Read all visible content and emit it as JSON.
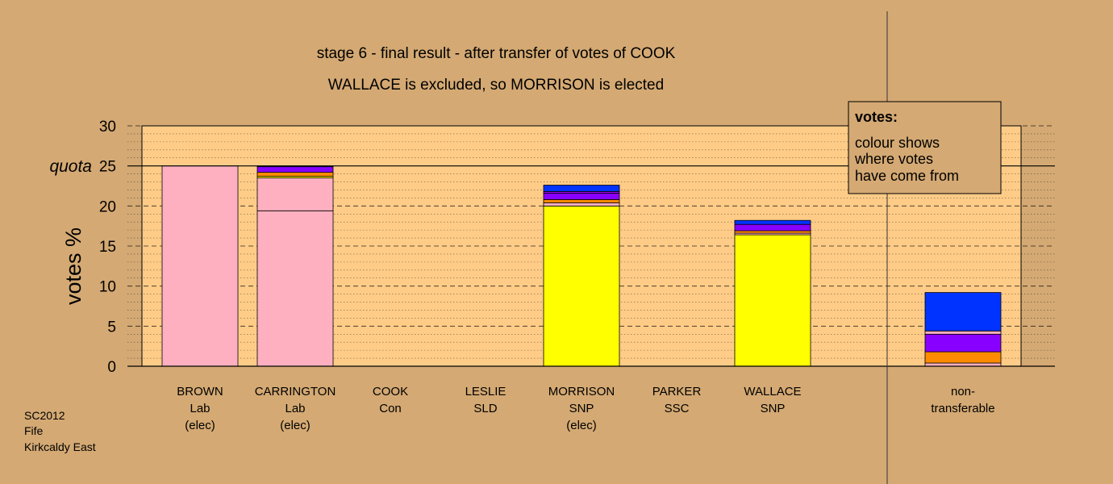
{
  "chart_data": {
    "type": "bar",
    "stacked": true,
    "title": "stage 6 - final result - after transfer of votes of COOK",
    "subtitle": "WALLACE is excluded, so MORRISON is elected",
    "ylabel": "votes %",
    "ylim": [
      0,
      30
    ],
    "yticks": [
      0,
      5,
      10,
      15,
      20,
      25,
      30
    ],
    "quota": {
      "label": "quota",
      "value": 25
    },
    "grid": true,
    "candidates": [
      {
        "lines": [
          "BROWN",
          "Lab",
          "(elec)"
        ],
        "segments": [
          {
            "color": "#ffb0c0",
            "from": 0,
            "to": 25.0
          }
        ]
      },
      {
        "lines": [
          "CARRINGTON",
          "Lab",
          "(elec)"
        ],
        "segments": [
          {
            "color": "#ffb0c0",
            "from": 0,
            "to": 19.4
          },
          {
            "color": "#ffb0c0",
            "from": 19.4,
            "to": 23.5
          },
          {
            "color": "#ffff00",
            "from": 23.5,
            "to": 23.7
          },
          {
            "color": "#ff8c00",
            "from": 23.7,
            "to": 24.2
          },
          {
            "color": "#8800ff",
            "from": 24.2,
            "to": 24.9
          },
          {
            "color": "#0033ff",
            "from": 24.9,
            "to": 25.0
          }
        ]
      },
      {
        "lines": [
          "COOK",
          "Con"
        ],
        "segments": []
      },
      {
        "lines": [
          "LESLIE",
          "SLD"
        ],
        "segments": []
      },
      {
        "lines": [
          "MORRISON",
          "SNP",
          "(elec)"
        ],
        "segments": [
          {
            "color": "#ffff00",
            "from": 0,
            "to": 20.0
          },
          {
            "color": "#ffb0c0",
            "from": 20.0,
            "to": 20.4
          },
          {
            "color": "#ff8c00",
            "from": 20.4,
            "to": 20.8
          },
          {
            "color": "#8800ff",
            "from": 20.8,
            "to": 21.6
          },
          {
            "color": "#b000ff",
            "from": 21.6,
            "to": 21.8
          },
          {
            "color": "#0033ff",
            "from": 21.8,
            "to": 22.6
          }
        ]
      },
      {
        "lines": [
          "PARKER",
          "SSC"
        ],
        "segments": []
      },
      {
        "lines": [
          "WALLACE",
          "SNP"
        ],
        "segments": [
          {
            "color": "#ffff00",
            "from": 0,
            "to": 16.4
          },
          {
            "color": "#ffb0c0",
            "from": 16.4,
            "to": 16.6
          },
          {
            "color": "#ff8c00",
            "from": 16.6,
            "to": 16.9
          },
          {
            "color": "#8800ff",
            "from": 16.9,
            "to": 17.7
          },
          {
            "color": "#0033ff",
            "from": 17.7,
            "to": 18.2
          }
        ]
      }
    ],
    "nontransferable": {
      "lines": [
        "non-",
        "transferable"
      ],
      "segments": [
        {
          "color": "#ffb0c0",
          "from": 0,
          "to": 0.4
        },
        {
          "color": "#ff8c00",
          "from": 0.4,
          "to": 1.8
        },
        {
          "color": "#8800ff",
          "from": 1.8,
          "to": 4.0
        },
        {
          "color": "#ffb0c0",
          "from": 4.0,
          "to": 4.4
        },
        {
          "color": "#0033ff",
          "from": 4.4,
          "to": 9.2
        }
      ]
    },
    "legend": {
      "placement": "top-right",
      "title": "votes:",
      "lines": [
        "colour shows",
        "where votes",
        "have come from"
      ]
    }
  },
  "footer": {
    "lines": [
      "SC2012",
      "Fife",
      "Kirkcaldy East"
    ]
  },
  "colors": {
    "background": "#d4a973",
    "plot_area": "#ffcc88"
  }
}
